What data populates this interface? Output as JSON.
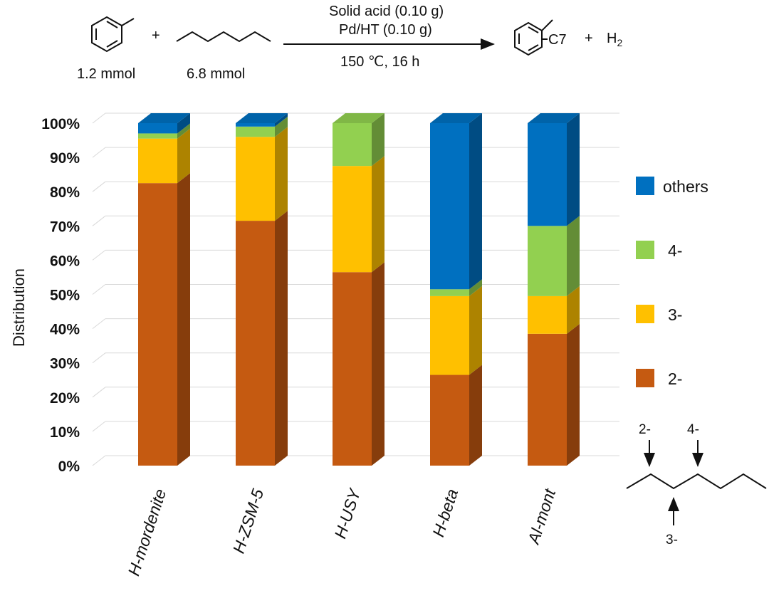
{
  "reaction": {
    "amount_left": "1.2 mmol",
    "amount_right": "6.8 mmol",
    "plus": "+",
    "condition_line1": "Solid acid (0.10 g)",
    "condition_line2": "Pd/HT (0.10 g)",
    "condition_line3": "150 ℃, 16 h",
    "product_label": "C7",
    "product_plus": "+",
    "h2_main": "H",
    "h2_sub": "2"
  },
  "chart_data": {
    "type": "bar",
    "stacked": true,
    "three_d": true,
    "ylabel": "Distribution",
    "xlabel": "",
    "ylim": [
      0,
      100
    ],
    "yticks": [
      "0%",
      "10%",
      "20%",
      "30%",
      "40%",
      "50%",
      "60%",
      "70%",
      "80%",
      "90%",
      "100%"
    ],
    "categories": [
      "H-mordenite",
      "H-ZSM-5",
      "H-USY",
      "H-beta",
      "Al-mont"
    ],
    "series": [
      {
        "name": "2-",
        "color": "#C55A11",
        "values": [
          82.5,
          71.5,
          56.5,
          26.5,
          38.5
        ]
      },
      {
        "name": "3-",
        "color": "#FFC000",
        "values": [
          13,
          24.5,
          31,
          23,
          11
        ]
      },
      {
        "name": "4-",
        "color": "#92D050",
        "values": [
          1.5,
          3,
          12.5,
          2,
          20.5
        ]
      },
      {
        "name": "others",
        "color": "#0070C0",
        "values": [
          3,
          1,
          0,
          48.5,
          30
        ]
      }
    ],
    "legend_position": "right",
    "legend_order": [
      "others",
      "4-",
      "3-",
      "2-"
    ],
    "grid": true
  },
  "position_labels": {
    "p2": "2-",
    "p3": "3-",
    "p4": "4-"
  }
}
